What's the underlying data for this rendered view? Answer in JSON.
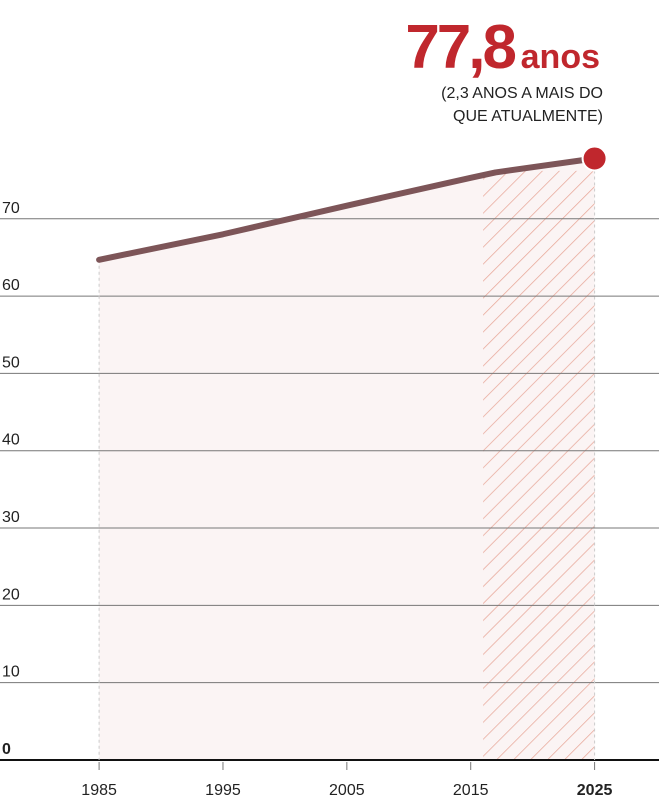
{
  "chart_data": {
    "type": "line",
    "headline_value": "77,8",
    "headline_unit": "anos",
    "annotation": [
      "(2,3 ANOS A MAIS DO",
      "QUE ATUALMENTE)"
    ],
    "x": [
      1985,
      1995,
      2005,
      2015,
      2017,
      2025
    ],
    "series": [
      {
        "color": "#7d5558",
        "values": [
          64.7,
          68.0,
          71.7,
          75.3,
          76.0,
          77.8
        ]
      }
    ],
    "end_marker_color": "#c0272d",
    "shaded_range": [
      2016,
      2025
    ],
    "xlim": [
      1977,
      2030.2
    ],
    "ylim": [
      0,
      98.3
    ],
    "xticks": [
      1985,
      1995,
      2005,
      2015,
      2025
    ],
    "yticks": [
      0,
      10,
      20,
      30,
      40,
      50,
      60,
      70
    ],
    "grid": true
  }
}
